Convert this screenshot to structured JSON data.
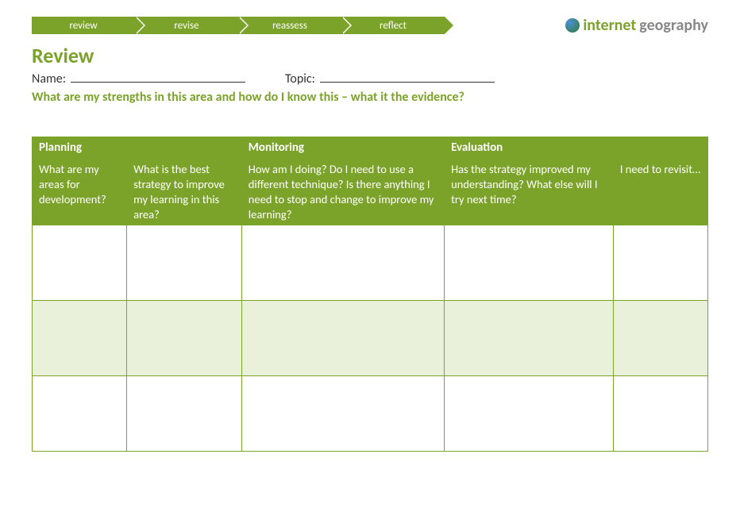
{
  "tabs": [
    "review",
    "revise",
    "reassess",
    "reflect"
  ],
  "logo": {
    "word1": "internet",
    "word2": "geography"
  },
  "heading": "Review",
  "form": {
    "name_label": "Name:",
    "topic_label": "Topic:"
  },
  "question": "What are my strengths in this area and how do I know this – what it the evidence?",
  "table": {
    "sections": {
      "planning": "Planning",
      "monitoring": "Monitoring",
      "evaluation": "Evaluation"
    },
    "columns": [
      "What are my areas for development?",
      "What is the best strategy to improve my learning in this area?",
      "How am I doing? Do I need to use a different technique? Is there anything I need to stop and change to improve my learning?",
      "Has the strategy improved my understanding?\nWhat else will I try next time?",
      "I need to revisit…"
    ],
    "row_backgrounds": [
      "#ffffff",
      "#eaf1db",
      "#ffffff"
    ],
    "header_bg": "#7ba32a",
    "header_fg": "#ffffff",
    "border_color": "#7ba32a"
  },
  "colors": {
    "brand_green": "#7ba32a",
    "grey": "#888888",
    "text": "#333333"
  }
}
